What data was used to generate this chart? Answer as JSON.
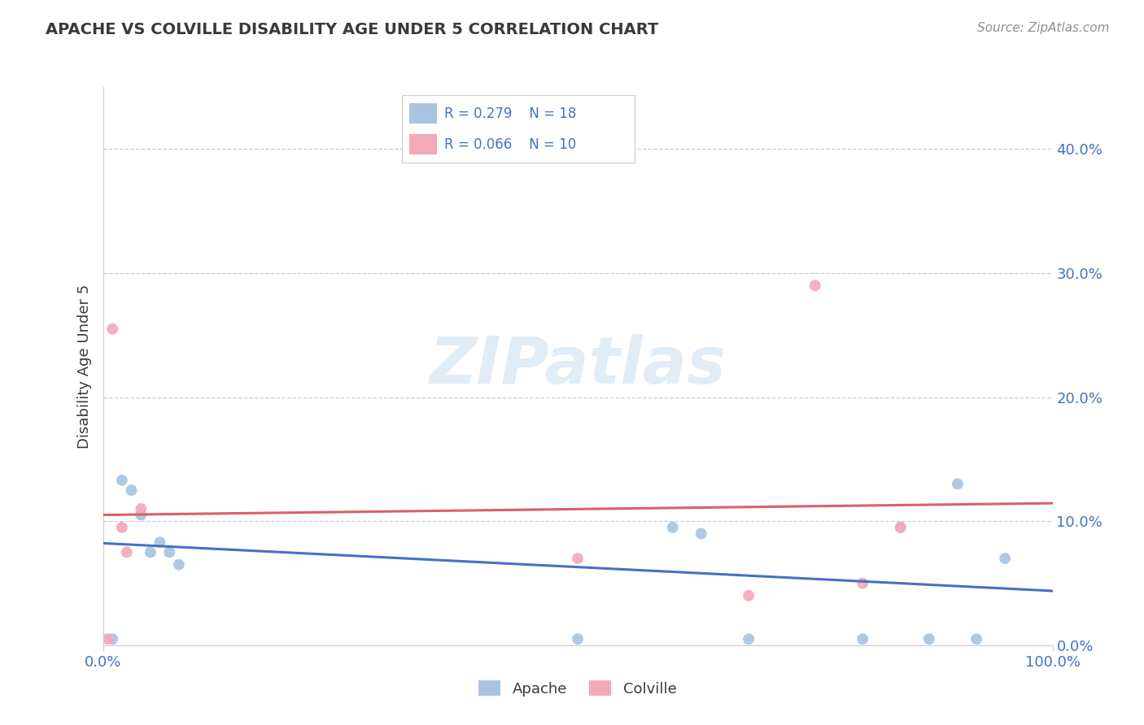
{
  "title": "APACHE VS COLVILLE DISABILITY AGE UNDER 5 CORRELATION CHART",
  "source": "Source: ZipAtlas.com",
  "ylabel": "Disability Age Under 5",
  "xlim": [
    0.0,
    1.0
  ],
  "ylim": [
    0.0,
    0.45
  ],
  "x_tick_vals": [
    0.0,
    1.0
  ],
  "x_tick_labels": [
    "0.0%",
    "100.0%"
  ],
  "y_tick_vals": [
    0.0,
    0.1,
    0.2,
    0.3,
    0.4
  ],
  "y_tick_labels": [
    "0.0%",
    "10.0%",
    "20.0%",
    "30.0%",
    "40.0%"
  ],
  "apache_R": 0.279,
  "apache_N": 18,
  "colville_R": 0.066,
  "colville_N": 10,
  "apache_color": "#a8c4e0",
  "colville_color": "#f4a8b8",
  "apache_line_color": "#4472c4",
  "colville_line_color": "#d9606d",
  "legend_text_color": "#4472c4",
  "title_color": "#3a3a3a",
  "source_color": "#909090",
  "grid_color": "#cccccc",
  "background_color": "#ffffff",
  "apache_x": [
    0.01,
    0.02,
    0.03,
    0.04,
    0.05,
    0.06,
    0.07,
    0.08,
    0.5,
    0.6,
    0.63,
    0.68,
    0.8,
    0.84,
    0.87,
    0.9,
    0.92,
    0.95
  ],
  "apache_y": [
    0.005,
    0.133,
    0.125,
    0.105,
    0.075,
    0.083,
    0.075,
    0.065,
    0.005,
    0.095,
    0.09,
    0.005,
    0.005,
    0.095,
    0.005,
    0.13,
    0.005,
    0.07
  ],
  "colville_x": [
    0.005,
    0.01,
    0.02,
    0.025,
    0.04,
    0.5,
    0.68,
    0.75,
    0.8,
    0.84
  ],
  "colville_y": [
    0.005,
    0.255,
    0.095,
    0.075,
    0.11,
    0.07,
    0.04,
    0.29,
    0.05,
    0.095
  ],
  "watermark_text": "ZIPatlas",
  "watermark_color": "#c8ddf0",
  "marker_size": 100,
  "legend_label_apache": "Apache",
  "legend_label_colville": "Colville"
}
